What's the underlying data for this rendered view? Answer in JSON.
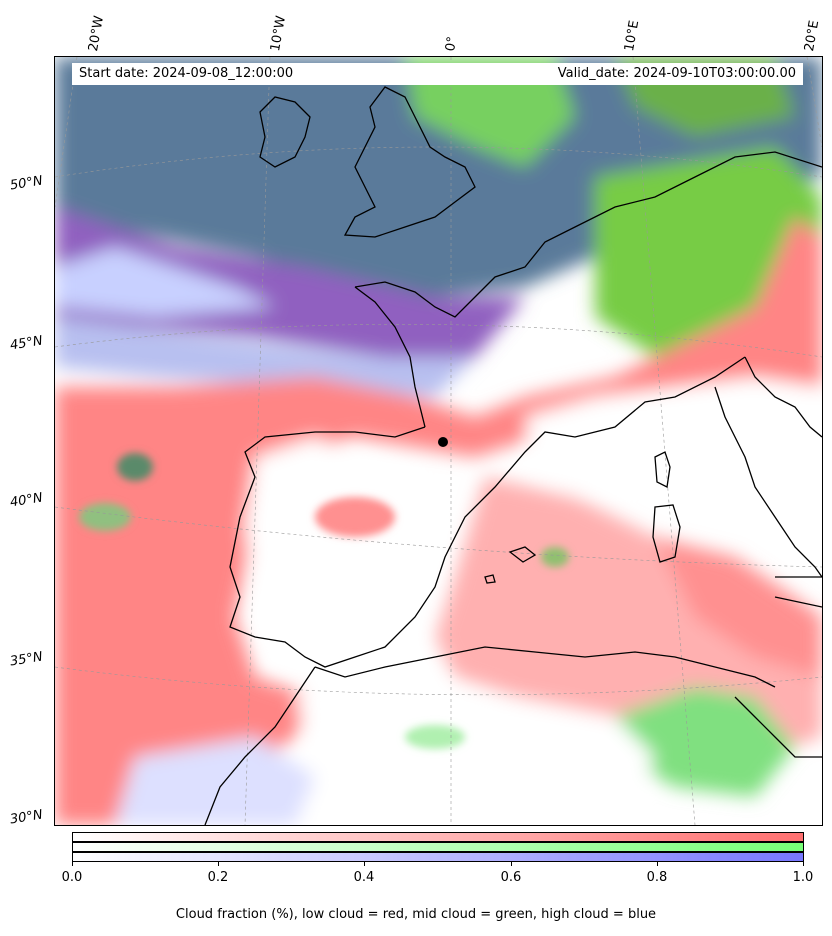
{
  "header": {
    "start_date": "Start date: 2024-09-08_12:00:00",
    "valid_date": "Valid_date: 2024-09-10T03:00:00.00"
  },
  "longitude_labels": [
    "20°W",
    "10°W",
    "0°",
    "10°E",
    "20°E"
  ],
  "latitude_labels": [
    "50°N",
    "45°N",
    "40°N",
    "35°N",
    "30°N"
  ],
  "colorbar": {
    "ticks": [
      "0.0",
      "0.2",
      "0.4",
      "0.6",
      "0.8",
      "1.0"
    ],
    "caption": "Cloud fraction (%), low cloud = red, mid cloud = green, high cloud = blue",
    "colors": {
      "low": "#ff7070",
      "mid": "#77ff77",
      "high": "#7777ff"
    }
  }
}
